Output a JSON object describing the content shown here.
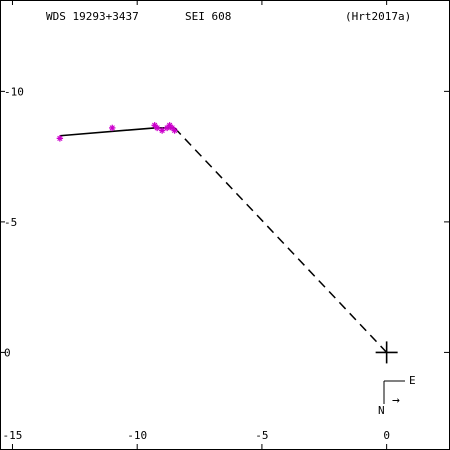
{
  "header": {
    "wds_id": "WDS 19293+3437",
    "discoverer": "SEI 608",
    "reference": "(Hrt2017a)"
  },
  "compass": {
    "east_label": "E",
    "north_label": "N",
    "arrow_glyph": "→"
  },
  "chart_data": {
    "type": "scatter",
    "title": "",
    "xlabel": "",
    "ylabel": "",
    "xlim": [
      -15.5,
      2.5
    ],
    "ylim": [
      -3.7,
      13.5
    ],
    "x_ticks": [
      -15,
      -10,
      -5,
      0
    ],
    "x_tick_labels": [
      "-15",
      "-10",
      "-5",
      "0"
    ],
    "y_ticks": [
      0,
      5,
      10
    ],
    "y_tick_labels": [
      "0",
      "-5",
      "-10"
    ],
    "grid": false,
    "primary_star": {
      "x": 0,
      "y": 0
    },
    "observations": [
      {
        "x": -13.1,
        "y": 8.2
      },
      {
        "x": -11.0,
        "y": 8.6
      },
      {
        "x": -9.3,
        "y": 8.7
      },
      {
        "x": -9.2,
        "y": 8.6
      },
      {
        "x": -9.0,
        "y": 8.5
      },
      {
        "x": -8.8,
        "y": 8.6
      },
      {
        "x": -8.7,
        "y": 8.7
      },
      {
        "x": -8.6,
        "y": 8.6
      },
      {
        "x": -8.5,
        "y": 8.5
      }
    ],
    "orbit_path": [
      {
        "x": -13.1,
        "y": 8.3
      },
      {
        "x": -9.3,
        "y": 8.6
      },
      {
        "x": -8.5,
        "y": 8.6
      }
    ],
    "connector": {
      "from": {
        "x": -8.5,
        "y": 8.6
      },
      "to": {
        "x": 0,
        "y": 0
      }
    },
    "colors": {
      "observation": "#cc00cc",
      "line": "#000000",
      "background": "#ffffff"
    }
  }
}
